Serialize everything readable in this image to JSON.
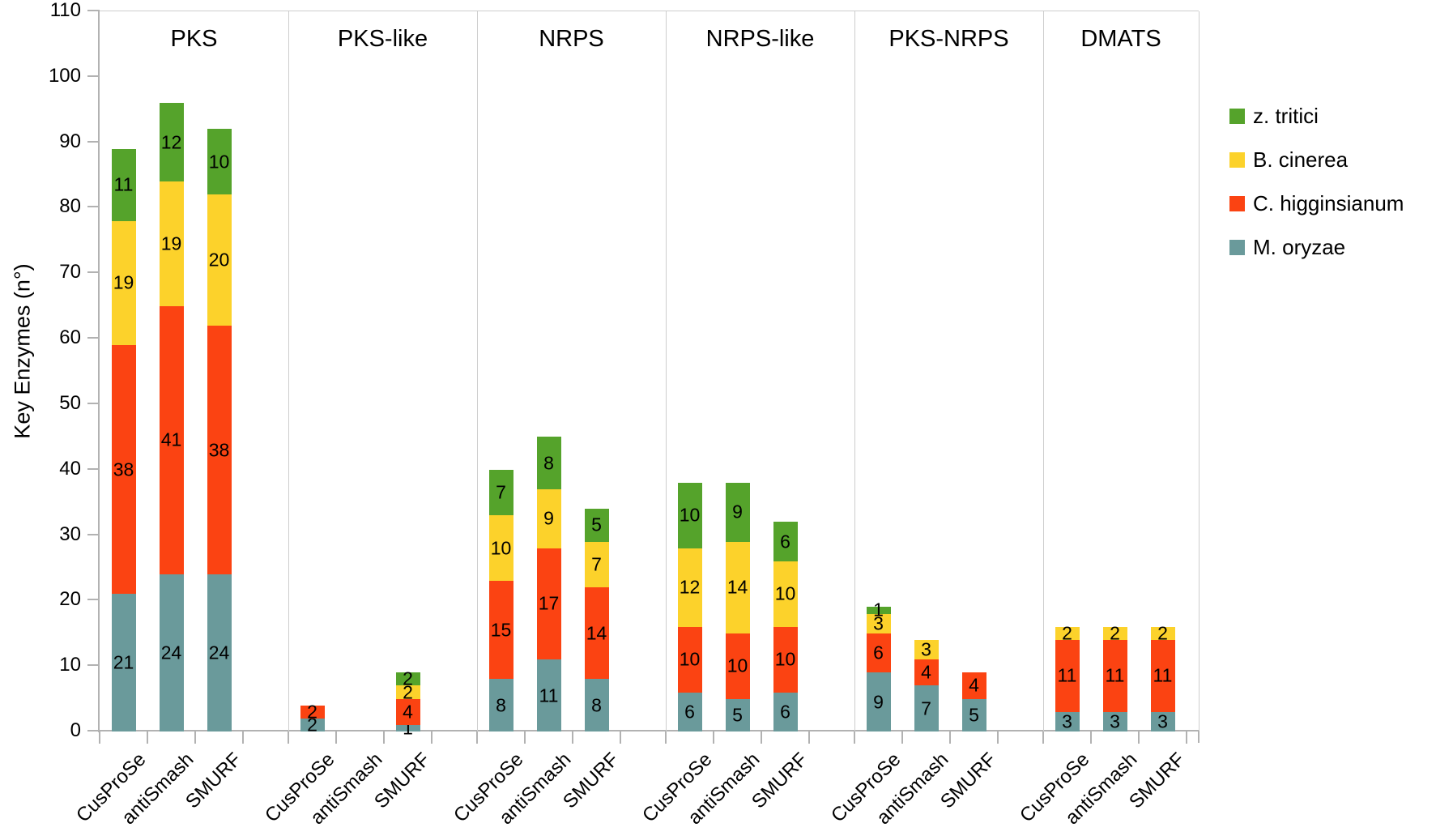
{
  "chart_data": {
    "type": "bar",
    "stacked": true,
    "title": "",
    "ylabel": "Key Enzymes (n°)",
    "xlabel": "",
    "ylim": [
      0,
      110
    ],
    "ytick_step": 10,
    "grid": false,
    "legend_position": "right-top",
    "group_labels": [
      "PKS",
      "PKS-like",
      "NRPS",
      "NRPS-like",
      "PKS-NRPS",
      "DMATS"
    ],
    "categories": [
      "CusProSe",
      "antiSmash",
      "SMURF"
    ],
    "series": [
      {
        "name": "M. oryzae",
        "color": "#6A9A9B",
        "values_by_group": [
          [
            21,
            24,
            24
          ],
          [
            2,
            0,
            1
          ],
          [
            8,
            11,
            8
          ],
          [
            6,
            5,
            6
          ],
          [
            9,
            7,
            5
          ],
          [
            3,
            3,
            3
          ]
        ]
      },
      {
        "name": "C. higginsianum",
        "color": "#FB4312",
        "values_by_group": [
          [
            38,
            41,
            38
          ],
          [
            2,
            0,
            4
          ],
          [
            15,
            17,
            14
          ],
          [
            10,
            10,
            10
          ],
          [
            6,
            4,
            4
          ],
          [
            11,
            11,
            11
          ]
        ]
      },
      {
        "name": "B. cinerea",
        "color": "#FCD22B",
        "values_by_group": [
          [
            19,
            19,
            20
          ],
          [
            0,
            0,
            2
          ],
          [
            10,
            9,
            7
          ],
          [
            12,
            14,
            10
          ],
          [
            3,
            3,
            0
          ],
          [
            2,
            2,
            2
          ]
        ]
      },
      {
        "name": "z. tritici",
        "color": "#55A32B",
        "values_by_group": [
          [
            11,
            12,
            10
          ],
          [
            0,
            0,
            2
          ],
          [
            7,
            8,
            5
          ],
          [
            10,
            9,
            6
          ],
          [
            1,
            0,
            0
          ],
          [
            0,
            0,
            0
          ]
        ]
      }
    ],
    "legend_order": [
      "z. tritici",
      "B. cinerea",
      "C. higginsianum",
      "M. oryzae"
    ],
    "group_totals": [
      [
        89,
        96,
        92
      ],
      [
        4,
        0,
        9
      ],
      [
        40,
        45,
        34
      ],
      [
        38,
        38,
        32
      ],
      [
        19,
        14,
        9
      ],
      [
        16,
        16,
        16
      ]
    ]
  }
}
